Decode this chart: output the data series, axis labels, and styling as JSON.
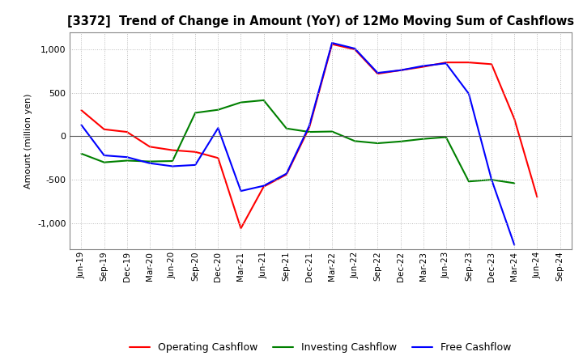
{
  "title": "[3372]  Trend of Change in Amount (YoY) of 12Mo Moving Sum of Cashflows",
  "ylabel": "Amount (million yen)",
  "x_labels": [
    "Jun-19",
    "Sep-19",
    "Dec-19",
    "Mar-20",
    "Jun-20",
    "Sep-20",
    "Dec-20",
    "Mar-21",
    "Jun-21",
    "Sep-21",
    "Dec-21",
    "Mar-22",
    "Jun-22",
    "Sep-22",
    "Dec-22",
    "Mar-23",
    "Jun-23",
    "Sep-23",
    "Dec-23",
    "Mar-24",
    "Jun-24",
    "Sep-24"
  ],
  "operating": [
    300,
    80,
    50,
    -120,
    -160,
    -180,
    -250,
    -1060,
    -580,
    -440,
    100,
    1060,
    1000,
    720,
    760,
    800,
    850,
    850,
    830,
    200,
    -700,
    null
  ],
  "investing": [
    -200,
    -300,
    -280,
    -290,
    -285,
    270,
    305,
    390,
    415,
    90,
    50,
    55,
    -55,
    -80,
    -60,
    -30,
    -10,
    -520,
    -500,
    -540,
    null,
    null
  ],
  "free": [
    130,
    -220,
    -240,
    -310,
    -345,
    -330,
    95,
    -630,
    -570,
    -430,
    120,
    1075,
    1010,
    730,
    760,
    810,
    840,
    490,
    -500,
    -1250,
    null,
    null
  ],
  "operating_color": "#ff0000",
  "investing_color": "#008000",
  "free_color": "#0000ff",
  "ylim": [
    -1300,
    1200
  ],
  "yticks": [
    -1000,
    -500,
    0,
    500,
    1000
  ],
  "background_color": "#ffffff",
  "plot_bg_color": "#ffffff",
  "grid_color": "#aaaaaa"
}
